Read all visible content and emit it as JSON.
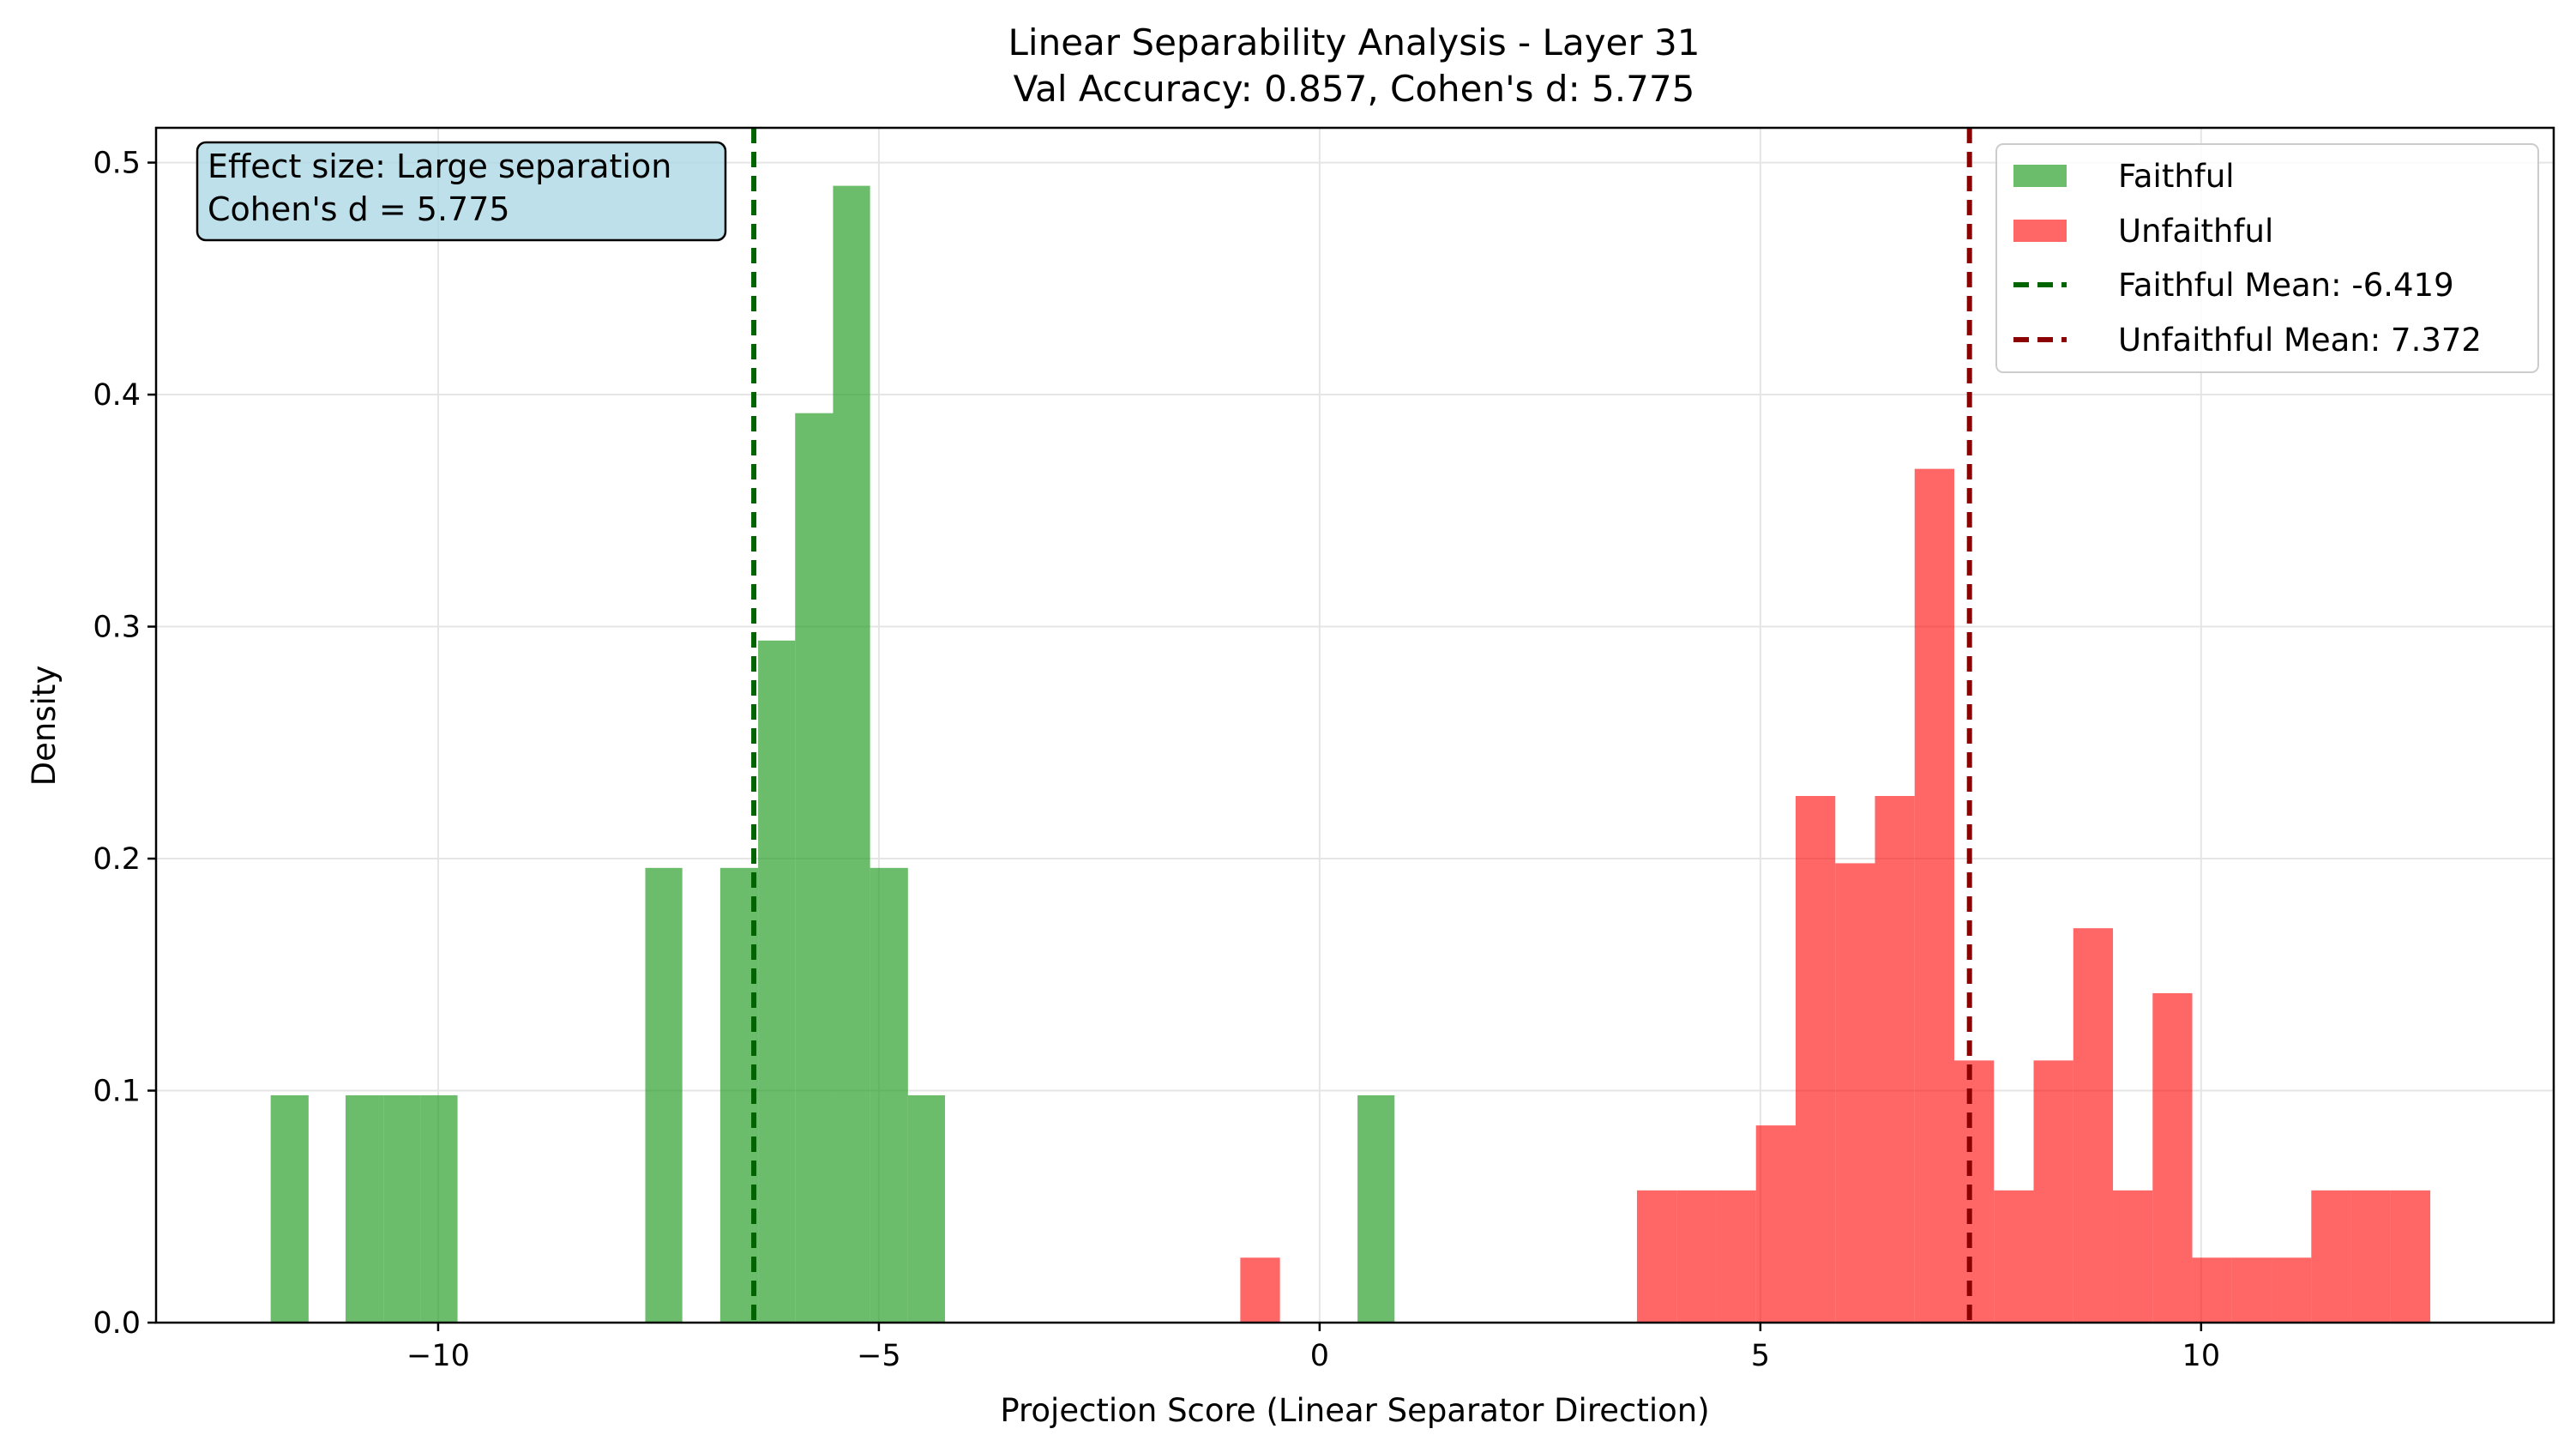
{
  "chart_data": {
    "type": "bar",
    "title": "Linear Separability Analysis - Layer 31",
    "subtitle": "Val Accuracy: 0.857, Cohen's d: 5.775",
    "xlabel": "Projection Score (Linear Separator Direction)",
    "ylabel": "Density",
    "xlim": [
      -13.2,
      14.0
    ],
    "ylim": [
      0,
      0.515
    ],
    "xticks": [
      -10,
      -5,
      0,
      5,
      10
    ],
    "xtick_labels": [
      "−10",
      "−5",
      "0",
      "5",
      "10"
    ],
    "yticks": [
      0.0,
      0.1,
      0.2,
      0.3,
      0.4,
      0.5
    ],
    "ytick_labels": [
      "0.0",
      "0.1",
      "0.2",
      "0.3",
      "0.4",
      "0.5"
    ],
    "grid": true,
    "legend_position": "top-right",
    "series": [
      {
        "name": "Faithful",
        "color": "#2ca02c",
        "bins": [
          {
            "x0": -11.9,
            "x1": -11.47,
            "y": 0.098
          },
          {
            "x0": -11.05,
            "x1": -10.62,
            "y": 0.098
          },
          {
            "x0": -10.62,
            "x1": -10.2,
            "y": 0.098
          },
          {
            "x0": -10.2,
            "x1": -9.78,
            "y": 0.098
          },
          {
            "x0": -7.65,
            "x1": -7.23,
            "y": 0.196
          },
          {
            "x0": -6.8,
            "x1": -6.37,
            "y": 0.196
          },
          {
            "x0": -6.37,
            "x1": -5.95,
            "y": 0.294
          },
          {
            "x0": -5.95,
            "x1": -5.52,
            "y": 0.392
          },
          {
            "x0": -5.52,
            "x1": -5.1,
            "y": 0.49
          },
          {
            "x0": -5.1,
            "x1": -4.67,
            "y": 0.196
          },
          {
            "x0": -4.67,
            "x1": -4.25,
            "y": 0.098
          },
          {
            "x0": 0.43,
            "x1": 0.85,
            "y": 0.098
          }
        ]
      },
      {
        "name": "Unfaithful",
        "color": "#ff0000",
        "bins": [
          {
            "x0": -0.9,
            "x1": -0.45,
            "y": 0.028
          },
          {
            "x0": 3.6,
            "x1": 4.05,
            "y": 0.057
          },
          {
            "x0": 4.05,
            "x1": 4.5,
            "y": 0.057
          },
          {
            "x0": 4.5,
            "x1": 4.95,
            "y": 0.057
          },
          {
            "x0": 4.95,
            "x1": 5.4,
            "y": 0.085
          },
          {
            "x0": 5.4,
            "x1": 5.85,
            "y": 0.227
          },
          {
            "x0": 5.85,
            "x1": 6.3,
            "y": 0.198
          },
          {
            "x0": 6.3,
            "x1": 6.75,
            "y": 0.227
          },
          {
            "x0": 6.75,
            "x1": 7.2,
            "y": 0.368
          },
          {
            "x0": 7.2,
            "x1": 7.65,
            "y": 0.113
          },
          {
            "x0": 7.65,
            "x1": 8.1,
            "y": 0.057
          },
          {
            "x0": 8.1,
            "x1": 8.55,
            "y": 0.113
          },
          {
            "x0": 8.55,
            "x1": 9.0,
            "y": 0.17
          },
          {
            "x0": 9.0,
            "x1": 9.45,
            "y": 0.057
          },
          {
            "x0": 9.45,
            "x1": 9.9,
            "y": 0.142
          },
          {
            "x0": 9.9,
            "x1": 10.35,
            "y": 0.028
          },
          {
            "x0": 10.35,
            "x1": 10.8,
            "y": 0.028
          },
          {
            "x0": 10.8,
            "x1": 11.25,
            "y": 0.028
          },
          {
            "x0": 11.25,
            "x1": 11.7,
            "y": 0.057
          },
          {
            "x0": 11.7,
            "x1": 12.15,
            "y": 0.057
          },
          {
            "x0": 12.15,
            "x1": 12.6,
            "y": 0.057
          }
        ]
      }
    ],
    "mean_lines": [
      {
        "name": "Faithful Mean: -6.419",
        "x": -6.419,
        "color": "#006400"
      },
      {
        "name": "Unfaithful Mean: 7.372",
        "x": 7.372,
        "color": "#8b0000"
      }
    ],
    "annotation": {
      "line1": "Effect size: Large separation",
      "line2": "Cohen's d = 5.775",
      "background": "#add8e6"
    }
  }
}
